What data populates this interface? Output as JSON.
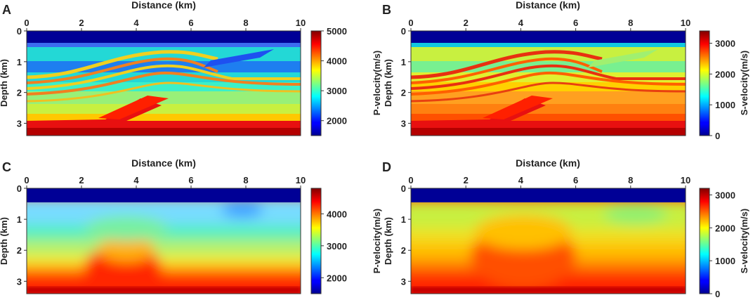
{
  "figure": {
    "panels": [
      "A",
      "B",
      "C",
      "D"
    ]
  },
  "chart_data": [
    {
      "panel": "A",
      "type": "heatmap",
      "title": "",
      "xlabel": "Distance (km)",
      "ylabel": "Depth (km)",
      "xlim": [
        0,
        10
      ],
      "ylim": [
        0,
        3.4
      ],
      "xticks": [
        0,
        2,
        4,
        6,
        8,
        10
      ],
      "yticks": [
        0,
        1,
        2,
        3
      ],
      "colorbar_label": "P-velocity(m/s)",
      "colorbar_range": [
        1500,
        5000
      ],
      "colorbar_ticks": [
        2000,
        3000,
        4000,
        5000
      ],
      "model": "true"
    },
    {
      "panel": "B",
      "type": "heatmap",
      "title": "",
      "xlabel": "Distance (km)",
      "ylabel": "Depth (km)",
      "xlim": [
        0,
        10
      ],
      "ylim": [
        0,
        3.4
      ],
      "xticks": [
        0,
        2,
        4,
        6,
        8,
        10
      ],
      "yticks": [
        0,
        1,
        2,
        3
      ],
      "colorbar_label": "S-velocity(m/s)",
      "colorbar_range": [
        0,
        3400
      ],
      "colorbar_ticks": [
        0,
        1000,
        2000,
        3000
      ],
      "model": "true"
    },
    {
      "panel": "C",
      "type": "heatmap",
      "title": "",
      "xlabel": "Distance (km)",
      "ylabel": "Depth (km)",
      "xlim": [
        0,
        10
      ],
      "ylim": [
        0,
        3.4
      ],
      "xticks": [
        0,
        2,
        4,
        6,
        8,
        10
      ],
      "yticks": [
        0,
        1,
        2,
        3
      ],
      "colorbar_label": "P-velocity(m/s)",
      "colorbar_range": [
        1500,
        4800
      ],
      "colorbar_ticks": [
        2000,
        3000,
        4000
      ],
      "model": "smooth"
    },
    {
      "panel": "D",
      "type": "heatmap",
      "title": "",
      "xlabel": "Distance (km)",
      "ylabel": "Depth (km)",
      "xlim": [
        0,
        10
      ],
      "ylim": [
        0,
        3.4
      ],
      "xticks": [
        0,
        2,
        4,
        6,
        8,
        10
      ],
      "yticks": [
        0,
        1,
        2,
        3
      ],
      "colorbar_label": "S-velocity(m/s)",
      "colorbar_range": [
        0,
        3200
      ],
      "colorbar_ticks": [
        0,
        1000,
        2000,
        3000
      ],
      "model": "smooth"
    }
  ]
}
